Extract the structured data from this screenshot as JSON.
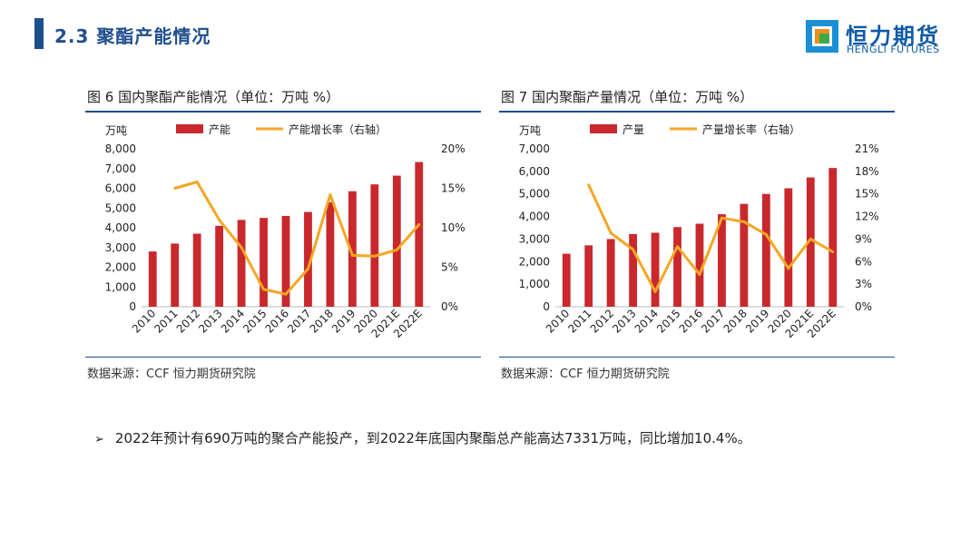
{
  "header": {
    "title": "2.3 聚酯产能情况"
  },
  "logo": {
    "name": "恒力期货",
    "sub": "HENGLI FUTURES",
    "colors": [
      "#1a8fd6",
      "#f08c1a",
      "#3aa845"
    ]
  },
  "figures": [
    {
      "title": "图 6 国内聚酯产能情况（单位：万吨 %）",
      "source": "数据来源：CCF 恒力期货研究院"
    },
    {
      "title": "图 7 国内聚酯产量情况（单位：万吨 %）",
      "source": "数据来源：CCF 恒力期货研究院"
    }
  ],
  "bullet": {
    "marker": "➢",
    "text": "2022年预计有690万吨的聚合产能投产，到2022年底国内聚酯总产能高达7331万吨，同比增加10.4%。"
  },
  "colors": {
    "bar": "#c9282d",
    "line": "#f5a623",
    "accent": "#1f4e8c"
  },
  "chart_data": [
    {
      "type": "bar",
      "unit_label": "万吨",
      "categories": [
        "2010",
        "2011",
        "2012",
        "2013",
        "2014",
        "2015",
        "2016",
        "2017",
        "2018",
        "2019",
        "2020",
        "2021E",
        "2022E"
      ],
      "series": [
        {
          "name": "产能",
          "axis": "left",
          "kind": "bar",
          "values": [
            2800,
            3200,
            3700,
            4100,
            4400,
            4500,
            4600,
            4800,
            5300,
            5850,
            6200,
            6640,
            7331
          ]
        },
        {
          "name": "产能增长率（右轴）",
          "axis": "right",
          "kind": "line",
          "values": [
            null,
            15.0,
            15.8,
            11.0,
            7.5,
            2.2,
            1.6,
            4.8,
            14.2,
            6.5,
            6.4,
            7.2,
            10.4
          ]
        }
      ],
      "ylim": [
        0,
        8000
      ],
      "yticks": [
        "0",
        "1,000",
        "2,000",
        "3,000",
        "4,000",
        "5,000",
        "6,000",
        "7,000",
        "8,000"
      ],
      "y2lim": [
        0,
        20
      ],
      "y2ticks": [
        "0%",
        "5%",
        "10%",
        "15%",
        "20%"
      ],
      "legend": "top"
    },
    {
      "type": "bar",
      "unit_label": "万吨",
      "categories": [
        "2010",
        "2011",
        "2012",
        "2013",
        "2014",
        "2015",
        "2016",
        "2017",
        "2018",
        "2019",
        "2020",
        "2021E",
        "2022E"
      ],
      "series": [
        {
          "name": "产量",
          "axis": "left",
          "kind": "bar",
          "values": [
            2350,
            2720,
            3000,
            3220,
            3280,
            3530,
            3680,
            4100,
            4560,
            5000,
            5250,
            5730,
            6150
          ]
        },
        {
          "name": "产量增长率（右轴）",
          "axis": "right",
          "kind": "line",
          "values": [
            null,
            16.2,
            9.8,
            7.6,
            2.0,
            8.0,
            4.3,
            11.8,
            11.3,
            9.6,
            5.1,
            9.0,
            7.3
          ]
        }
      ],
      "ylim": [
        0,
        7000
      ],
      "yticks": [
        "0",
        "1,000",
        "2,000",
        "3,000",
        "4,000",
        "5,000",
        "6,000",
        "7,000"
      ],
      "y2lim": [
        0,
        21
      ],
      "y2ticks": [
        "0%",
        "3%",
        "6%",
        "9%",
        "12%",
        "15%",
        "18%",
        "21%"
      ],
      "legend": "top"
    }
  ]
}
